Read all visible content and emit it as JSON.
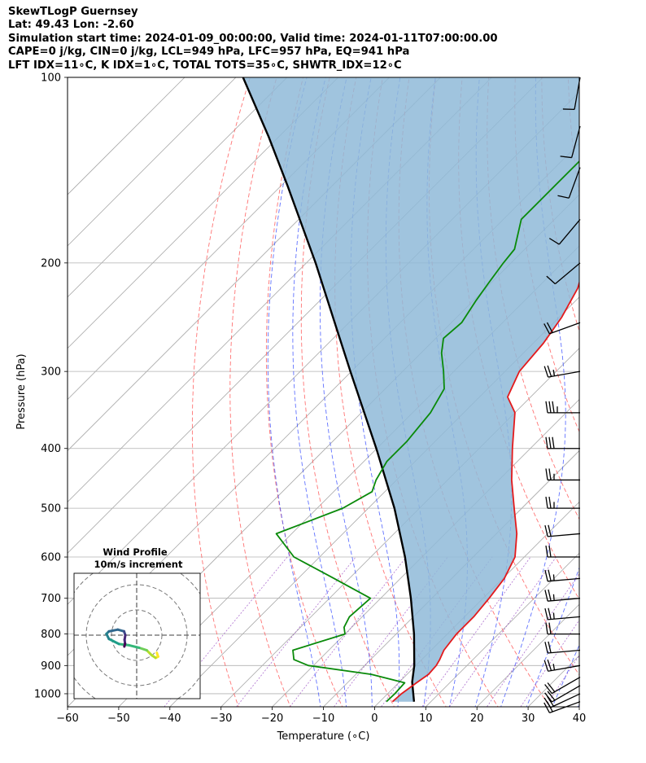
{
  "header": {
    "lines": [
      "SkewTLogP Guernsey",
      "Lat: 49.43   Lon: -2.60",
      "Simulation start time: 2024-01-09_00:00:00, Valid time: 2024-01-11T07:00:00.00",
      "CAPE=0 j/kg, CIN=0 j/kg, LCL=949 hPa, LFC=957 hPa, EQ=941 hPa",
      "LFT IDX=11∘C, K IDX=1∘C, TOTAL TOTS=35∘C, SHWTR_IDX=12∘C"
    ]
  },
  "chart_data": {
    "type": "line",
    "subtype": "skew-t log-p",
    "xlabel": "Temperature (∘C)",
    "ylabel": "Pressure (hPa)",
    "xlim": [
      -60,
      40
    ],
    "ylim": [
      1050,
      100
    ],
    "yscale": "log",
    "x_ticks": [
      -60,
      -50,
      -40,
      -30,
      -20,
      -10,
      0,
      10,
      20,
      30,
      40
    ],
    "x_tick_labels": [
      "−60",
      "−50",
      "−40",
      "−30",
      "−20",
      "−10",
      "0",
      "10",
      "20",
      "30",
      "40"
    ],
    "y_ticks": [
      1000,
      900,
      800,
      700,
      600,
      500,
      400,
      300,
      200,
      100
    ],
    "y_tick_labels": [
      "1000",
      "900",
      "800",
      "700",
      "600",
      "500",
      "400",
      "300",
      "200",
      "100"
    ],
    "grid": true,
    "skew_deg": 45,
    "colors": {
      "temperature": "#e31a1c",
      "dewpoint": "#0a8a0a",
      "parcel": "#000000",
      "cape_fill": "#8fbad8",
      "dry_adiabat": "#ff5a5a",
      "moist_adiabat": "#3a4fff",
      "mixing_ratio": "#9b4fc4",
      "isotherm": "#a8a8a8"
    },
    "series": [
      {
        "role": "temperature",
        "pressure": [
          1030,
          1000,
          960,
          930,
          900,
          880,
          850,
          800,
          750,
          700,
          650,
          600,
          550,
          500,
          450,
          400,
          350,
          330,
          300,
          270,
          245,
          220,
          200,
          180,
          165,
          150,
          135,
          125,
          118,
          110,
          100
        ],
        "temperature": [
          2.5,
          2.7,
          3.5,
          4.2,
          4.0,
          3.5,
          2.5,
          1.8,
          1.8,
          1.2,
          0.3,
          -1.8,
          -6.0,
          -11.5,
          -17.5,
          -23.5,
          -30.0,
          -34.5,
          -37.2,
          -38.0,
          -39.5,
          -42.0,
          -45.5,
          -48.0,
          -48.8,
          -49.5,
          -51.5,
          -53.5,
          -53.5,
          -55.0,
          -56.0
        ]
      },
      {
        "role": "dewpoint",
        "pressure": [
          1030,
          1000,
          960,
          930,
          900,
          880,
          850,
          800,
          780,
          750,
          700,
          650,
          600,
          550,
          500,
          470,
          450,
          420,
          390,
          350,
          320,
          300,
          280,
          265,
          250,
          230,
          215,
          200,
          190,
          170,
          150,
          130,
          115,
          100
        ],
        "temperature": [
          1.3,
          1.4,
          1.2,
          -7.0,
          -21.0,
          -25.0,
          -27.0,
          -20.0,
          -21.5,
          -22.5,
          -22.0,
          -33.0,
          -45.0,
          -53.0,
          -45.0,
          -42.5,
          -44.0,
          -45.5,
          -45.5,
          -46.5,
          -48.5,
          -52.0,
          -56.0,
          -58.5,
          -58.0,
          -59.5,
          -60.5,
          -61.5,
          -62.0,
          -66.5,
          -66.5,
          -66.5,
          -67.5,
          -68.5
        ]
      },
      {
        "role": "parcel",
        "pressure": [
          1030,
          957,
          900,
          800,
          700,
          600,
          500,
          400,
          300,
          250,
          200,
          150,
          125,
          100
        ],
        "temperature": [
          6.7,
          2.5,
          -0.3,
          -6.5,
          -14.1,
          -23.3,
          -34.9,
          -50.1,
          -70.2,
          -82.8,
          -98.2,
          -118.7,
          -131.9,
          -148.6
        ]
      }
    ],
    "wind_barbs": {
      "pressure": [
        1030,
        1000,
        970,
        940,
        900,
        850,
        800,
        750,
        700,
        650,
        600,
        550,
        500,
        450,
        400,
        350,
        300,
        250,
        200,
        170,
        140,
        120,
        100
      ],
      "speed_kt": [
        20,
        20,
        20,
        20,
        25,
        20,
        20,
        25,
        25,
        25,
        20,
        20,
        25,
        25,
        30,
        35,
        25,
        20,
        10,
        10,
        10,
        10,
        10
      ],
      "direction_deg": [
        250,
        245,
        240,
        240,
        260,
        265,
        270,
        265,
        265,
        265,
        270,
        265,
        270,
        270,
        270,
        270,
        260,
        250,
        230,
        220,
        200,
        195,
        190
      ]
    },
    "inset": {
      "title_lines": [
        "Wind Profile",
        "10m/s increment"
      ],
      "type": "hodograph",
      "colormap": "viridis",
      "points": [
        [
          8,
          -7
        ],
        [
          8.5,
          -8.5
        ],
        [
          7.5,
          -9
        ],
        [
          6,
          -8
        ],
        [
          4,
          -6
        ],
        [
          1,
          -5
        ],
        [
          -3,
          -4
        ],
        [
          -7,
          -3.5
        ],
        [
          -11,
          -1.5
        ],
        [
          -12,
          0.5
        ],
        [
          -11,
          1.5
        ],
        [
          -7.5,
          2.2
        ],
        [
          -5,
          1.5
        ],
        [
          -4.5,
          0
        ],
        [
          -4.8,
          -1.8
        ],
        [
          -4.6,
          -3.4
        ],
        [
          -4.9,
          -4.5
        ]
      ]
    }
  }
}
